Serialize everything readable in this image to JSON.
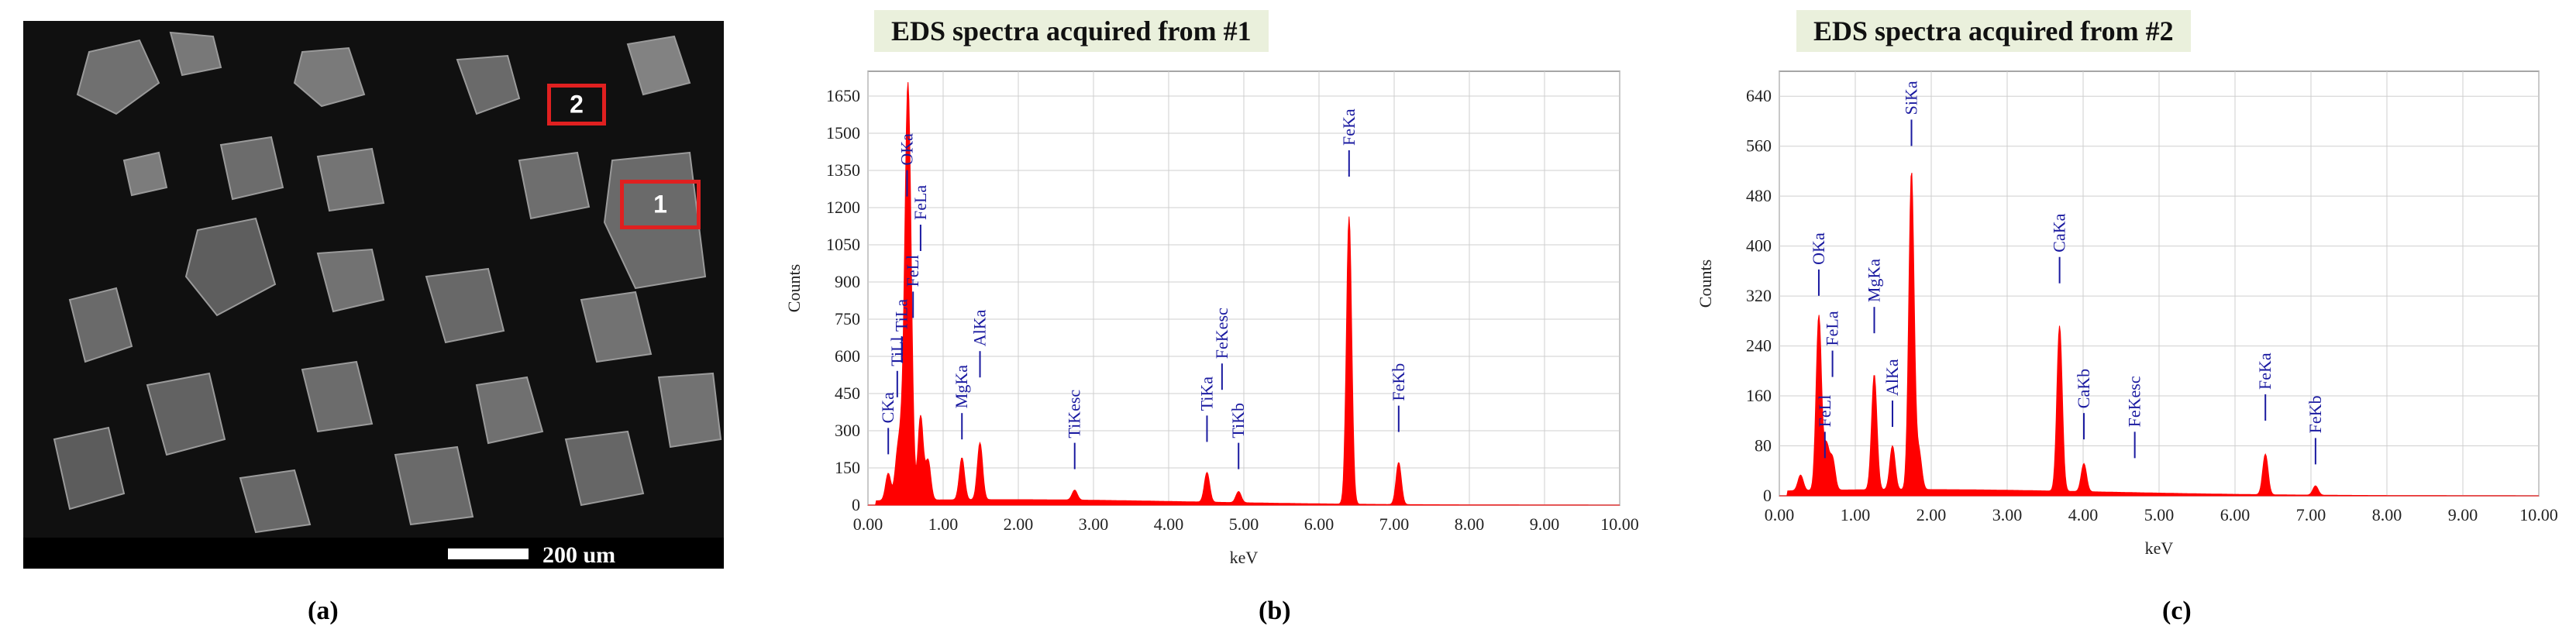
{
  "panel_a": {
    "scale_label": "200 um",
    "regions": [
      {
        "label": "2"
      },
      {
        "label": "1"
      }
    ],
    "caption": "(a)"
  },
  "panel_b": {
    "caption": "(b)"
  },
  "panel_c": {
    "caption": "(c)"
  },
  "colors": {
    "spectrum": "#ff0000",
    "peak_label": "#1a1aa0",
    "title_bg": "#eaf0dc",
    "region_box": "#e02020"
  },
  "chart_data": [
    {
      "type": "area",
      "title": "EDS spectra acquired from #1",
      "xlabel": "keV",
      "ylabel": "Counts",
      "xlim": [
        0,
        10
      ],
      "ylim": [
        0,
        1750
      ],
      "xticks": [
        "0.00",
        "1.00",
        "2.00",
        "3.00",
        "4.00",
        "5.00",
        "6.00",
        "7.00",
        "8.00",
        "9.00",
        "10.00"
      ],
      "yticks": [
        "0",
        "150",
        "300",
        "450",
        "600",
        "750",
        "900",
        "1050",
        "1200",
        "1350",
        "1500",
        "1650"
      ],
      "ytick_values": [
        0,
        150,
        300,
        450,
        600,
        750,
        900,
        1050,
        1200,
        1350,
        1500,
        1650
      ],
      "grid": true,
      "peaks": [
        {
          "x": 0.27,
          "y": 110
        },
        {
          "x": 0.39,
          "y": 160
        },
        {
          "x": 0.45,
          "y": 230
        },
        {
          "x": 0.52,
          "y": 1220
        },
        {
          "x": 0.56,
          "y": 720
        },
        {
          "x": 0.7,
          "y": 340
        },
        {
          "x": 0.8,
          "y": 160
        },
        {
          "x": 1.25,
          "y": 170
        },
        {
          "x": 1.49,
          "y": 230
        },
        {
          "x": 2.75,
          "y": 40
        },
        {
          "x": 4.51,
          "y": 120
        },
        {
          "x": 4.93,
          "y": 45
        },
        {
          "x": 6.4,
          "y": 1160
        },
        {
          "x": 7.06,
          "y": 170
        }
      ],
      "background_level": 22,
      "peak_labels": [
        {
          "text": "CKa",
          "x": 0.27,
          "y": 330
        },
        {
          "text": "TiLl",
          "x": 0.39,
          "y": 560
        },
        {
          "text": "TiLa",
          "x": 0.45,
          "y": 700
        },
        {
          "text": "OKa",
          "x": 0.52,
          "y": 1370
        },
        {
          "text": "FeLl",
          "x": 0.6,
          "y": 880
        },
        {
          "text": "FeLa",
          "x": 0.7,
          "y": 1150
        },
        {
          "text": "MgKa",
          "x": 1.25,
          "y": 390
        },
        {
          "text": "AlKa",
          "x": 1.49,
          "y": 640
        },
        {
          "text": "TiKesc",
          "x": 2.75,
          "y": 270
        },
        {
          "text": "TiKa",
          "x": 4.51,
          "y": 380
        },
        {
          "text": "FeKesc",
          "x": 4.71,
          "y": 590
        },
        {
          "text": "TiKb",
          "x": 4.93,
          "y": 270
        },
        {
          "text": "FeKa",
          "x": 6.4,
          "y": 1450
        },
        {
          "text": "FeKb",
          "x": 7.06,
          "y": 420
        }
      ]
    },
    {
      "type": "area",
      "title": "EDS spectra acquired from #2",
      "xlabel": "keV",
      "ylabel": "Counts",
      "xlim": [
        0,
        10
      ],
      "ylim": [
        0,
        680
      ],
      "xticks": [
        "0.00",
        "1.00",
        "2.00",
        "3.00",
        "4.00",
        "5.00",
        "6.00",
        "7.00",
        "8.00",
        "9.00",
        "10.00"
      ],
      "yticks": [
        "0",
        "80",
        "160",
        "240",
        "320",
        "400",
        "480",
        "560",
        "640"
      ],
      "ytick_values": [
        0,
        80,
        160,
        240,
        320,
        400,
        480,
        560,
        640
      ],
      "grid": true,
      "peaks": [
        {
          "x": 0.28,
          "y": 25
        },
        {
          "x": 0.52,
          "y": 280
        },
        {
          "x": 0.62,
          "y": 70
        },
        {
          "x": 0.7,
          "y": 50
        },
        {
          "x": 1.25,
          "y": 185
        },
        {
          "x": 1.49,
          "y": 70
        },
        {
          "x": 1.74,
          "y": 510
        },
        {
          "x": 1.84,
          "y": 60
        },
        {
          "x": 3.69,
          "y": 265
        },
        {
          "x": 4.01,
          "y": 45
        },
        {
          "x": 6.4,
          "y": 65
        },
        {
          "x": 7.06,
          "y": 15
        }
      ],
      "background_level": 10,
      "peak_labels": [
        {
          "text": "OKa",
          "x": 0.52,
          "y": 370
        },
        {
          "text": "FeLl",
          "x": 0.6,
          "y": 110
        },
        {
          "text": "FeLa",
          "x": 0.7,
          "y": 240
        },
        {
          "text": "MgKa",
          "x": 1.25,
          "y": 310
        },
        {
          "text": "AlKa",
          "x": 1.49,
          "y": 160
        },
        {
          "text": "SiKa",
          "x": 1.74,
          "y": 610
        },
        {
          "text": "CaKa",
          "x": 3.69,
          "y": 390
        },
        {
          "text": "CaKb",
          "x": 4.01,
          "y": 140
        },
        {
          "text": "FeKesc",
          "x": 4.68,
          "y": 110
        },
        {
          "text": "FeKa",
          "x": 6.4,
          "y": 170
        },
        {
          "text": "FeKb",
          "x": 7.06,
          "y": 100
        }
      ]
    }
  ]
}
